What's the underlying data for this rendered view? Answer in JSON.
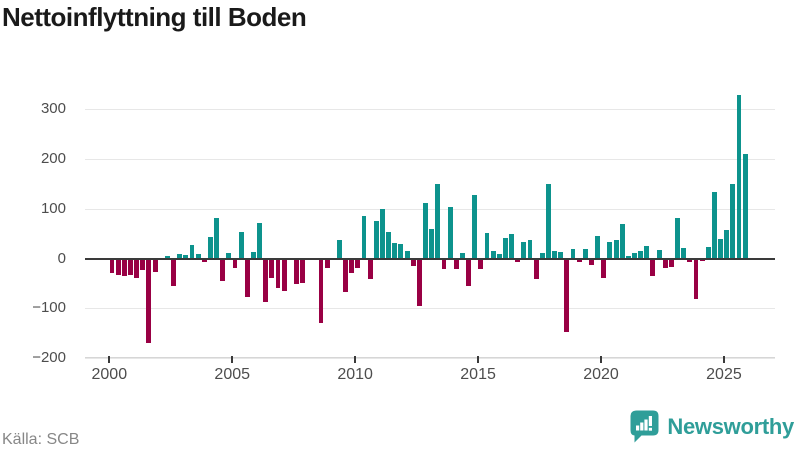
{
  "title": "Nettoinflyttning till Boden",
  "source": "Källa: SCB",
  "logo": {
    "text": "Newsworthy"
  },
  "colors": {
    "positive_bar": "#0d938d",
    "negative_bar": "#990044",
    "logo_teal": "#2f9e99",
    "zero_line": "#3a3a3a",
    "gridline": "#e7e7e7",
    "axis_text": "#4d4d4d"
  },
  "chart_data": {
    "type": "bar",
    "title": "Nettoinflyttning till Boden",
    "xlabel": "",
    "ylabel": "",
    "ylim": [
      -200,
      340
    ],
    "grid": "horizontal",
    "y_ticks": [
      300,
      200,
      100,
      0,
      -100,
      -200
    ],
    "y_tick_labels": [
      "300",
      "200",
      "100",
      "0",
      "−100",
      "−200"
    ],
    "x_tick_labels": [
      "2000",
      "2005",
      "2010",
      "2015",
      "2020",
      "2025"
    ],
    "frequency": "quarterly",
    "series_by_year": [
      {
        "year": 2000,
        "values": [
          -30,
          -33,
          -36,
          -33
        ]
      },
      {
        "year": 2001,
        "values": [
          -40,
          -23,
          -170,
          -28
        ]
      },
      {
        "year": 2002,
        "values": [
          0,
          5,
          -55,
          10
        ]
      },
      {
        "year": 2003,
        "values": [
          8,
          28,
          10,
          -7
        ]
      },
      {
        "year": 2004,
        "values": [
          43,
          81,
          -45,
          12
        ]
      },
      {
        "year": 2005,
        "values": [
          -20,
          53,
          -77,
          13
        ]
      },
      {
        "year": 2006,
        "values": [
          71,
          -87,
          -39,
          -59
        ]
      },
      {
        "year": 2007,
        "values": [
          -65,
          0,
          -52,
          -49
        ]
      },
      {
        "year": 2008,
        "values": [
          0,
          0,
          -129,
          -19
        ]
      },
      {
        "year": 2009,
        "values": [
          0,
          38,
          -67,
          -30
        ]
      },
      {
        "year": 2010,
        "values": [
          -19,
          86,
          -42,
          75
        ]
      },
      {
        "year": 2011,
        "values": [
          99,
          53,
          31,
          30
        ]
      },
      {
        "year": 2012,
        "values": [
          16,
          -15,
          -95,
          111
        ]
      },
      {
        "year": 2013,
        "values": [
          59,
          150,
          -21,
          103
        ]
      },
      {
        "year": 2014,
        "values": [
          -21,
          11,
          -55,
          128
        ]
      },
      {
        "year": 2015,
        "values": [
          -22,
          51,
          15,
          10
        ]
      },
      {
        "year": 2016,
        "values": [
          41,
          50,
          -7,
          33
        ]
      },
      {
        "year": 2017,
        "values": [
          38,
          -41,
          11,
          150
        ]
      },
      {
        "year": 2018,
        "values": [
          16,
          13,
          -147,
          20
        ]
      },
      {
        "year": 2019,
        "values": [
          -7,
          20,
          -14,
          45
        ]
      },
      {
        "year": 2020,
        "values": [
          -39,
          33,
          37,
          69
        ]
      },
      {
        "year": 2021,
        "values": [
          6,
          11,
          15,
          25
        ]
      },
      {
        "year": 2022,
        "values": [
          -35,
          17,
          -20,
          -17
        ]
      },
      {
        "year": 2023,
        "values": [
          81,
          21,
          -7,
          -82
        ]
      },
      {
        "year": 2024,
        "values": [
          -5,
          23,
          134,
          39
        ]
      },
      {
        "year": 2025,
        "values": [
          57,
          150,
          328,
          211
        ]
      }
    ]
  }
}
